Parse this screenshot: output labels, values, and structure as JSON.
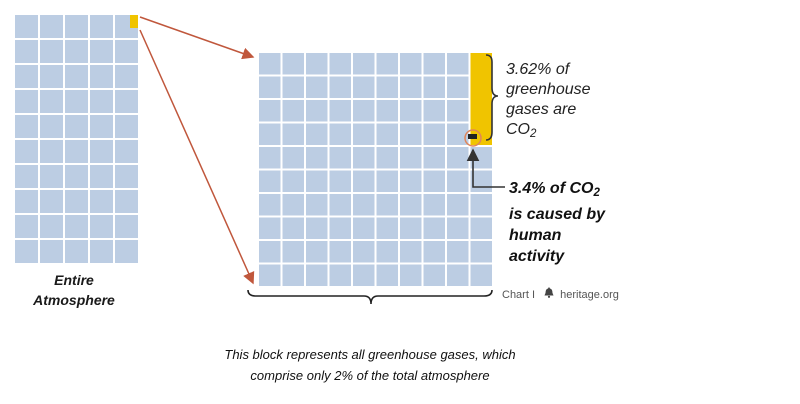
{
  "labels": {
    "entire_atmosphere": [
      "Entire",
      "Atmosphere"
    ],
    "greenhouse_share": [
      "3.62% of",
      "greenhouse",
      "gases are"
    ],
    "greenhouse_share_last": "CO",
    "greenhouse_share_sub": "2",
    "human_share_first": "3.4% of CO",
    "human_share_sub": "2",
    "human_share_rest": [
      "is caused by",
      "human",
      "activity"
    ],
    "credit_chart": "Chart I",
    "credit_source": "heritage.org",
    "caption": [
      "This block represents all greenhouse gases, which",
      "comprise only 2% of the total atmosphere"
    ]
  },
  "colors": {
    "grid_fill": "#bccde3",
    "grid_line": "#ffffff",
    "highlight": "#f0c400",
    "arrow": "#c0573c",
    "ring": "#e0855a",
    "bracket": "#333333"
  },
  "icons": [
    "liberty-bell-icon"
  ],
  "grids": {
    "atmosphere": {
      "cols": 5,
      "rows": 10
    },
    "greenhouse": {
      "cols": 10,
      "rows": 10,
      "highlighted_column": 10,
      "highlighted_rows": 4
    }
  }
}
